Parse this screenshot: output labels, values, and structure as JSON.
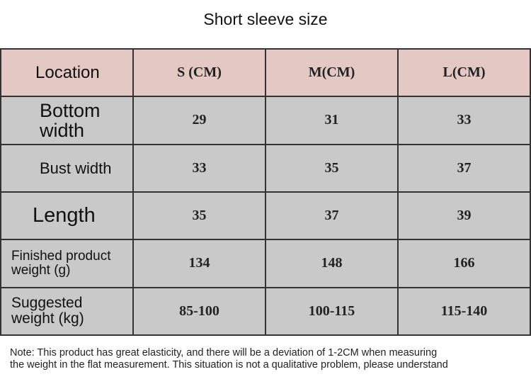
{
  "header": {
    "title": "Short sleeve size"
  },
  "table": {
    "columns": [
      "Location",
      "S (CM)",
      "M(CM)",
      "L(CM)"
    ],
    "rows": [
      [
        "Bottom width",
        29,
        31,
        33
      ],
      [
        "Bust width",
        33,
        35,
        37
      ],
      [
        "Length",
        35,
        37,
        39
      ],
      [
        "Finished product weight (g)",
        134,
        148,
        166
      ],
      [
        "Suggested weight (kg)",
        "85-100",
        "100-115",
        "115-140"
      ]
    ]
  },
  "note": [
    "Note: This product has great elasticity, and there will be a deviation of 1-2CM when measuring",
    "the weight in the flat measurement. This situation is not a qualitative problem, please understand"
  ]
}
